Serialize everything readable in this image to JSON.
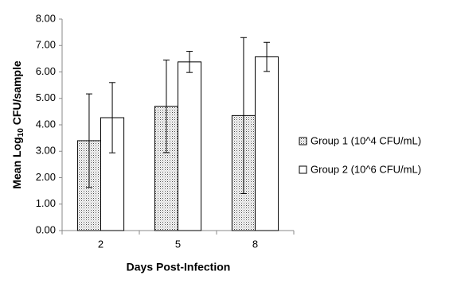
{
  "chart_data": {
    "type": "bar",
    "xlabel": "Days Post-Infection",
    "ylabel": [
      "Mean Log",
      "10",
      " CFU/sample"
    ],
    "categories": [
      "2",
      "5",
      "8"
    ],
    "series": [
      {
        "name": "Group 1 (10^4 CFU/mL)",
        "color": "#ffffff",
        "pattern": "dots",
        "values": [
          3.4,
          4.7,
          4.35
        ],
        "errors": [
          1.77,
          1.75,
          2.95
        ]
      },
      {
        "name": "Group 2 (10^6 CFU/mL)",
        "color": "#ffffff",
        "values": [
          4.27,
          6.38,
          6.57
        ],
        "errors": [
          1.33,
          0.4,
          0.55
        ]
      }
    ],
    "ylim": [
      0,
      8
    ],
    "yticks": [
      {
        "value": 0,
        "label": "0.00"
      },
      {
        "value": 1,
        "label": "1.00"
      },
      {
        "value": 2,
        "label": "2.00"
      },
      {
        "value": 3,
        "label": "3.00"
      },
      {
        "value": 4,
        "label": "4.00"
      },
      {
        "value": 5,
        "label": "5.00"
      },
      {
        "value": 6,
        "label": "6.00"
      },
      {
        "value": 7,
        "label": "7.00"
      },
      {
        "value": 8,
        "label": "8.00"
      }
    ],
    "grid": false,
    "legend": "right"
  }
}
